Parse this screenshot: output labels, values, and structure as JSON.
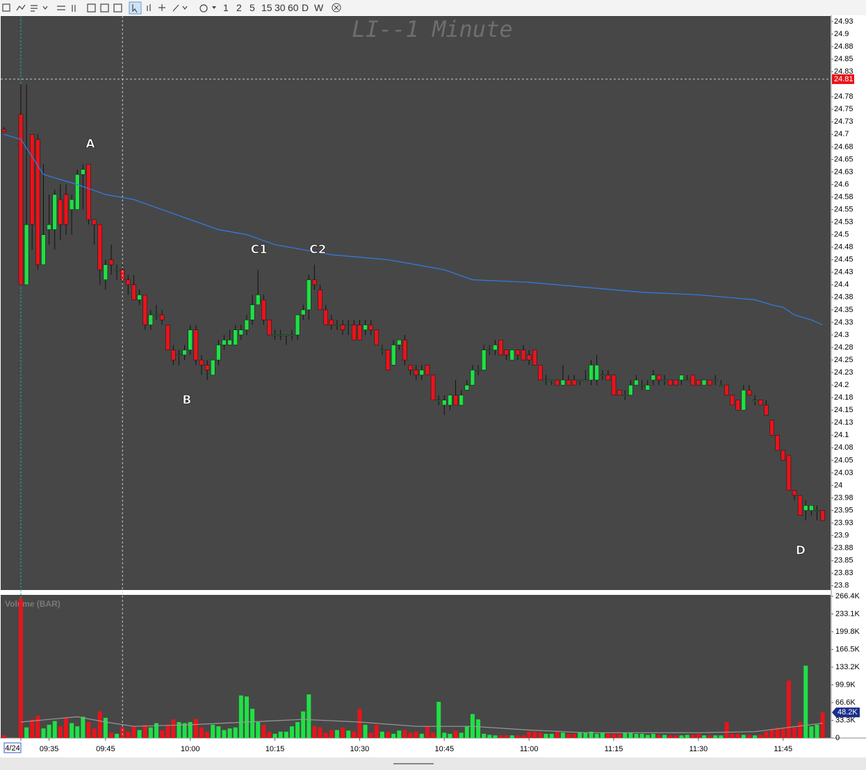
{
  "toolbar": {
    "periods": [
      "1",
      "2",
      "5",
      "15",
      "30",
      "60",
      "D",
      "W"
    ]
  },
  "chart_data": {
    "type": "candlestick",
    "title": "LI--1 Minute",
    "up_color": "#1fe045",
    "down_color": "#e8141b",
    "grid": false,
    "xlim": [
      -3.57,
      143.4
    ],
    "ylim": [
      23.79,
      24.936
    ],
    "xticks": [
      {
        "value": 0,
        "label": "4/24"
      },
      {
        "value": 5,
        "label": "09:35"
      },
      {
        "value": 15,
        "label": "09:45"
      },
      {
        "value": 30,
        "label": "10:00"
      },
      {
        "value": 45,
        "label": "10:15"
      },
      {
        "value": 60,
        "label": "10:30"
      },
      {
        "value": 75,
        "label": "10:45"
      },
      {
        "value": 90,
        "label": "11:00"
      },
      {
        "value": 105,
        "label": "11:15"
      },
      {
        "value": 120,
        "label": "11:30"
      },
      {
        "value": 135,
        "label": "11:45"
      }
    ],
    "yticks": [
      {
        "value": 24.925,
        "label": "24.93"
      },
      24.9,
      {
        "value": 24.875,
        "label": "24.88"
      },
      24.85,
      {
        "value": 24.825,
        "label": "24.83"
      },
      {
        "value": 24.775,
        "label": "24.78"
      },
      24.75,
      {
        "value": 24.725,
        "label": "24.73"
      },
      24.7,
      {
        "value": 24.675,
        "label": "24.68"
      },
      24.65,
      {
        "value": 24.625,
        "label": "24.63"
      },
      24.6,
      {
        "value": 24.575,
        "label": "24.58"
      },
      24.55,
      {
        "value": 24.525,
        "label": "24.53"
      },
      24.5,
      {
        "value": 24.475,
        "label": "24.48"
      },
      24.45,
      {
        "value": 24.425,
        "label": "24.43"
      },
      24.4,
      {
        "value": 24.375,
        "label": "24.38"
      },
      24.35,
      {
        "value": 24.325,
        "label": "24.33"
      },
      24.3,
      {
        "value": 24.275,
        "label": "24.28"
      },
      24.25,
      {
        "value": 24.225,
        "label": "24.23"
      },
      24.2,
      {
        "value": 24.175,
        "label": "24.18"
      },
      24.15,
      {
        "value": 24.125,
        "label": "24.13"
      },
      24.1,
      {
        "value": 24.075,
        "label": "24.08"
      },
      24.05,
      {
        "value": 24.025,
        "label": "24.03"
      },
      24,
      {
        "value": 23.975,
        "label": "23.98"
      },
      23.95,
      {
        "value": 23.925,
        "label": "23.93"
      },
      23.9,
      {
        "value": 23.875,
        "label": "23.88"
      },
      23.85,
      {
        "value": 23.825,
        "label": "23.83"
      },
      23.8
    ],
    "crosshair": {
      "x": 18,
      "price": 24.81
    },
    "annotations": [
      {
        "text": "A",
        "x": 12.3,
        "y": 24.68
      },
      {
        "text": "B",
        "x": 29.4,
        "y": 24.17
      },
      {
        "text": "C1",
        "x": 42.2,
        "y": 24.47
      },
      {
        "text": "C2",
        "x": 52.6,
        "y": 24.47
      },
      {
        "text": "D",
        "x": 138.1,
        "y": 23.87
      }
    ],
    "x": [
      -3,
      0,
      1,
      2,
      3,
      4,
      5,
      6,
      7,
      8,
      9,
      10,
      11,
      12,
      13,
      14,
      15,
      16,
      17,
      18,
      19,
      20,
      21,
      22,
      23,
      24,
      25,
      26,
      27,
      28,
      29,
      30,
      31,
      32,
      33,
      34,
      35,
      36,
      37,
      38,
      39,
      40,
      41,
      42,
      43,
      44,
      45,
      46,
      47,
      48,
      49,
      50,
      51,
      52,
      53,
      54,
      55,
      56,
      57,
      58,
      59,
      60,
      61,
      62,
      63,
      64,
      65,
      66,
      67,
      68,
      69,
      70,
      71,
      72,
      73,
      74,
      75,
      76,
      77,
      78,
      79,
      80,
      81,
      82,
      83,
      84,
      85,
      86,
      87,
      88,
      89,
      90,
      91,
      92,
      93,
      94,
      95,
      96,
      97,
      98,
      99,
      100,
      101,
      102,
      103,
      104,
      105,
      106,
      107,
      108,
      109,
      110,
      111,
      112,
      113,
      114,
      115,
      116,
      117,
      118,
      119,
      120,
      121,
      122,
      123,
      124,
      125,
      126,
      127,
      128,
      129,
      130,
      131,
      132,
      133,
      134,
      135,
      136,
      137,
      138,
      139,
      140,
      141,
      142
    ],
    "open": [
      24.71,
      24.74,
      24.4,
      24.7,
      24.69,
      24.44,
      24.51,
      24.51,
      24.57,
      24.58,
      24.55,
      24.55,
      24.62,
      24.64,
      24.53,
      24.52,
      24.41,
      24.45,
      24.43,
      24.43,
      24.41,
      24.4,
      24.37,
      24.38,
      24.32,
      24.34,
      24.34,
      24.32,
      24.27,
      24.26,
      24.26,
      24.27,
      24.31,
      24.25,
      24.24,
      24.22,
      24.25,
      24.28,
      24.28,
      24.28,
      24.3,
      24.31,
      24.33,
      24.36,
      24.37,
      24.33,
      24.3,
      24.3,
      24.3,
      24.3,
      24.3,
      24.34,
      24.35,
      24.41,
      24.39,
      24.35,
      24.33,
      24.32,
      24.32,
      24.32,
      24.32,
      24.32,
      24.31,
      24.32,
      24.31,
      24.27,
      24.27,
      24.24,
      24.28,
      24.29,
      24.24,
      24.23,
      24.22,
      24.24,
      24.22,
      24.17,
      24.16,
      24.16,
      24.18,
      24.16,
      24.19,
      24.2,
      24.23,
      24.23,
      24.27,
      24.27,
      24.29,
      24.27,
      24.25,
      24.27,
      24.27,
      24.26,
      24.27,
      24.24,
      24.21,
      24.21,
      24.21,
      24.2,
      24.21,
      24.21,
      24.21,
      24.21,
      24.21,
      24.21,
      24.22,
      24.22,
      24.22,
      24.19,
      24.18,
      24.18,
      24.2,
      24.2,
      24.19,
      24.21,
      24.22,
      24.21,
      24.21,
      24.21,
      24.21,
      24.21,
      24.22,
      24.21,
      24.2,
      24.21,
      24.21,
      24.2,
      24.2,
      24.18,
      24.17,
      24.15,
      24.19,
      24.17,
      24.17,
      24.16,
      24.13,
      24.1,
      24.07,
      24.06,
      23.99,
      23.98,
      23.95,
      23.95,
      23.95,
      23.95
    ],
    "high": [
      24.715,
      24.8,
      24.8,
      24.7,
      24.7,
      24.64,
      24.58,
      24.59,
      24.6,
      24.6,
      24.58,
      24.63,
      24.64,
      24.64,
      24.53,
      24.52,
      24.45,
      24.48,
      24.44,
      24.44,
      24.42,
      24.42,
      24.39,
      24.38,
      24.35,
      24.36,
      24.35,
      24.32,
      24.28,
      24.27,
      24.28,
      24.32,
      24.32,
      24.26,
      24.25,
      24.25,
      24.29,
      24.3,
      24.31,
      24.32,
      24.32,
      24.34,
      24.38,
      24.43,
      24.38,
      24.33,
      24.31,
      24.31,
      24.3,
      24.31,
      24.34,
      24.36,
      24.42,
      24.44,
      24.4,
      24.36,
      24.34,
      24.33,
      24.33,
      24.33,
      24.33,
      24.33,
      24.33,
      24.33,
      24.31,
      24.28,
      24.27,
      24.29,
      24.29,
      24.3,
      24.24,
      24.24,
      24.24,
      24.24,
      24.22,
      24.18,
      24.18,
      24.18,
      24.21,
      24.19,
      24.21,
      24.24,
      24.24,
      24.28,
      24.28,
      24.29,
      24.29,
      24.27,
      24.27,
      24.27,
      24.28,
      24.27,
      24.27,
      24.24,
      24.22,
      24.21,
      24.21,
      24.24,
      24.22,
      24.22,
      24.21,
      24.23,
      24.25,
      24.26,
      24.23,
      24.23,
      24.22,
      24.19,
      24.19,
      24.21,
      24.22,
      24.21,
      24.21,
      24.23,
      24.22,
      24.22,
      24.21,
      24.21,
      24.22,
      24.22,
      24.22,
      24.21,
      24.21,
      24.21,
      24.22,
      24.21,
      24.2,
      24.18,
      24.17,
      24.2,
      24.2,
      24.18,
      24.17,
      24.17,
      24.13,
      24.1,
      24.07,
      24.06,
      23.99,
      23.98,
      23.97,
      23.96,
      23.96,
      23.95
    ],
    "low": [
      24.705,
      24.4,
      24.4,
      24.47,
      24.43,
      24.44,
      24.48,
      24.47,
      24.49,
      24.5,
      24.5,
      24.55,
      24.55,
      24.52,
      24.48,
      24.4,
      24.39,
      24.42,
      24.41,
      24.4,
      24.38,
      24.37,
      24.36,
      24.31,
      24.31,
      24.33,
      24.32,
      24.27,
      24.24,
      24.24,
      24.25,
      24.26,
      24.24,
      24.22,
      24.21,
      24.22,
      24.24,
      24.27,
      24.28,
      24.28,
      24.29,
      24.3,
      24.32,
      24.36,
      24.32,
      24.3,
      24.29,
      24.29,
      24.28,
      24.29,
      24.29,
      24.33,
      24.33,
      24.39,
      24.35,
      24.32,
      24.31,
      24.31,
      24.3,
      24.3,
      24.29,
      24.29,
      24.3,
      24.3,
      24.28,
      24.26,
      24.23,
      24.24,
      24.27,
      24.24,
      24.22,
      24.21,
      24.21,
      24.22,
      24.17,
      24.16,
      24.14,
      24.15,
      24.16,
      24.16,
      24.19,
      24.2,
      24.22,
      24.23,
      24.26,
      24.26,
      24.26,
      24.25,
      24.25,
      24.25,
      24.25,
      24.24,
      24.24,
      24.21,
      24.2,
      24.2,
      24.2,
      24.2,
      24.2,
      24.2,
      24.2,
      24.21,
      24.2,
      24.2,
      24.21,
      24.21,
      24.18,
      24.18,
      24.17,
      24.18,
      24.2,
      24.19,
      24.19,
      24.2,
      24.2,
      24.2,
      24.2,
      24.2,
      24.2,
      24.21,
      24.2,
      24.2,
      24.2,
      24.2,
      24.2,
      24.2,
      24.18,
      24.16,
      24.15,
      24.15,
      24.18,
      24.16,
      24.16,
      24.14,
      24.1,
      24.07,
      24.05,
      23.99,
      23.97,
      23.94,
      23.93,
      23.94,
      23.93,
      23.93
    ],
    "close": [
      24.705,
      24.4,
      24.52,
      24.52,
      24.44,
      24.5,
      24.52,
      24.58,
      24.52,
      24.52,
      24.57,
      24.62,
      24.63,
      24.53,
      24.52,
      24.43,
      24.44,
      24.44,
      24.43,
      24.41,
      24.4,
      24.37,
      24.38,
      24.32,
      24.34,
      24.34,
      24.33,
      24.27,
      24.25,
      24.26,
      24.27,
      24.31,
      24.25,
      24.24,
      24.23,
      24.25,
      24.28,
      24.29,
      24.29,
      24.31,
      24.31,
      24.33,
      24.36,
      24.38,
      24.33,
      24.3,
      24.3,
      24.3,
      24.3,
      24.3,
      24.34,
      24.35,
      24.41,
      24.4,
      24.35,
      24.32,
      24.32,
      24.32,
      24.31,
      24.32,
      24.29,
      24.29,
      24.32,
      24.31,
      24.28,
      24.27,
      24.23,
      24.28,
      24.29,
      24.25,
      24.23,
      24.22,
      24.23,
      24.22,
      24.17,
      24.17,
      24.17,
      24.18,
      24.16,
      24.18,
      24.2,
      24.23,
      24.23,
      24.27,
      24.27,
      24.28,
      24.26,
      24.26,
      24.27,
      24.26,
      24.25,
      24.25,
      24.24,
      24.21,
      24.21,
      24.21,
      24.2,
      24.21,
      24.2,
      24.2,
      24.21,
      24.21,
      24.24,
      24.24,
      24.22,
      24.21,
      24.18,
      24.18,
      24.18,
      24.2,
      24.21,
      24.2,
      24.2,
      24.22,
      24.21,
      24.21,
      24.2,
      24.2,
      24.22,
      24.21,
      24.2,
      24.2,
      24.21,
      24.2,
      24.21,
      24.2,
      24.18,
      24.16,
      24.15,
      24.19,
      24.18,
      24.17,
      24.16,
      24.14,
      24.1,
      24.07,
      24.05,
      23.99,
      23.98,
      23.94,
      23.96,
      23.96,
      23.95,
      23.93
    ],
    "vwap": {
      "color": "#2f7fe8",
      "x": [
        -3,
        0,
        4,
        10,
        15,
        20,
        25,
        30,
        35,
        40,
        45,
        50,
        55,
        60,
        65,
        70,
        75,
        80,
        90,
        100,
        110,
        120,
        125,
        130,
        133,
        135,
        137,
        140,
        142
      ],
      "values": [
        24.7,
        24.69,
        24.62,
        24.6,
        24.58,
        24.57,
        24.55,
        24.53,
        24.51,
        24.5,
        24.48,
        24.47,
        24.46,
        24.455,
        24.45,
        24.44,
        24.43,
        24.41,
        24.405,
        24.395,
        24.385,
        24.38,
        24.375,
        24.37,
        24.36,
        24.355,
        24.34,
        24.33,
        24.32
      ]
    },
    "volume": {
      "type": "bar",
      "label": "Volume (BAR)",
      "ylim": [
        0,
        266.4
      ],
      "yticks": [
        0,
        {
          "value": 33.3,
          "label": "33.3K"
        },
        {
          "value": 66.6,
          "label": "66.6K"
        },
        {
          "value": 99.9,
          "label": "99.9K"
        },
        {
          "value": 133.2,
          "label": "133.2K"
        },
        {
          "value": 166.5,
          "label": "166.5K"
        },
        {
          "value": 199.8,
          "label": "199.8K"
        },
        {
          "value": 233.1,
          "label": "233.1K"
        },
        {
          "value": 266.4,
          "label": "266.4K"
        }
      ],
      "last": {
        "value": 48.2,
        "label": "48.2K"
      },
      "values": [
        5,
        262,
        20,
        35,
        42,
        18,
        25,
        32,
        22,
        38,
        28,
        22,
        40,
        30,
        18,
        50,
        38,
        10,
        8,
        20,
        12,
        22,
        15,
        25,
        20,
        28,
        14,
        25,
        35,
        30,
        28,
        30,
        36,
        20,
        12,
        25,
        22,
        15,
        18,
        20,
        80,
        78,
        55,
        30,
        25,
        12,
        8,
        12,
        12,
        22,
        30,
        50,
        82,
        22,
        20,
        10,
        15,
        15,
        20,
        14,
        12,
        55,
        25,
        10,
        25,
        12,
        12,
        8,
        14,
        15,
        10,
        12,
        8,
        22,
        10,
        68,
        10,
        8,
        14,
        10,
        22,
        45,
        35,
        8,
        6,
        5,
        5,
        5,
        5,
        5,
        5,
        12,
        12,
        10,
        8,
        8,
        12,
        10,
        8,
        8,
        10,
        10,
        12,
        8,
        10,
        8,
        8,
        8,
        10,
        10,
        8,
        8,
        6,
        8,
        6,
        6,
        5,
        5,
        5,
        6,
        6,
        8,
        5,
        5,
        5,
        5,
        30,
        8,
        8,
        6,
        6,
        5,
        6,
        12,
        16,
        20,
        18,
        108,
        20,
        30,
        136,
        22,
        25,
        48.2
      ],
      "ma": {
        "color": "#9a9a9a",
        "x": [
          0,
          5,
          10,
          15,
          20,
          30,
          40,
          50,
          60,
          70,
          80,
          90,
          100,
          110,
          120,
          130,
          136,
          142
        ],
        "values": [
          30,
          35,
          40,
          30,
          22,
          25,
          30,
          35,
          30,
          22,
          22,
          15,
          10,
          10,
          10,
          12,
          20,
          28
        ]
      }
    }
  }
}
